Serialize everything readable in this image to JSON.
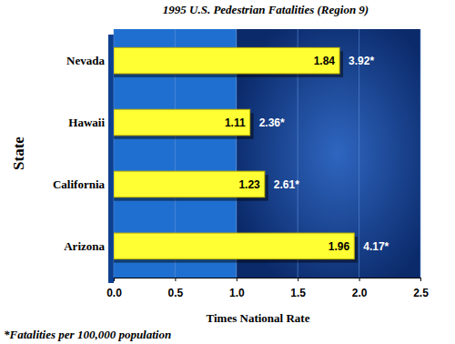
{
  "chart_data": {
    "type": "bar",
    "orientation": "horizontal",
    "title": "1995 U.S. Pedestrian Fatalities (Region 9)",
    "x_label": "Times National Rate",
    "y_label": "State",
    "categories": [
      "Nevada",
      "Hawaii",
      "California",
      "Arizona"
    ],
    "values": [
      1.84,
      1.11,
      1.23,
      1.96
    ],
    "data_labels": true,
    "fatalities_per_100000": [
      3.92,
      2.36,
      2.61,
      4.17
    ],
    "fatalities_per_100000_labels": [
      "3.92*",
      "2.36*",
      "2.61*",
      "4.17*"
    ],
    "note": "*Fatalities per 100,000 population",
    "xlim": [
      0,
      2.5
    ],
    "xticks": [
      {
        "value": 0,
        "label": "0.0"
      },
      0.5,
      {
        "value": 1,
        "label": "1.0"
      },
      1.5,
      {
        "value": 2,
        "label": "2.0"
      },
      2.5
    ],
    "color": "#ffff33",
    "grid": true
  }
}
